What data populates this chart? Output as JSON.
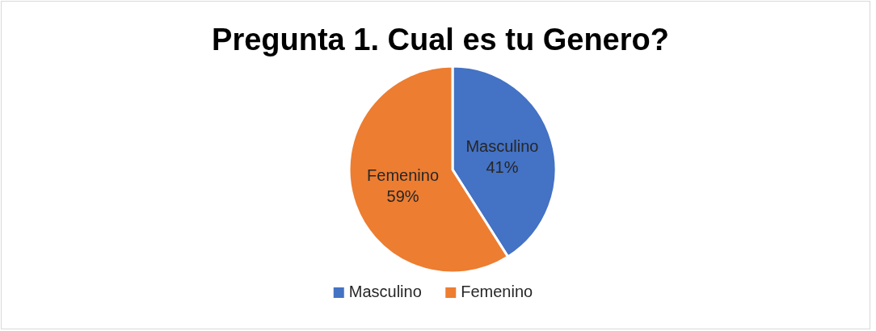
{
  "chart_data": {
    "type": "pie",
    "title": "Pregunta 1. Cual es tu Genero?",
    "categories": [
      "Masculino",
      "Femenino"
    ],
    "values": [
      41,
      59
    ],
    "colors": [
      "#4472c4",
      "#ed7d31"
    ],
    "value_labels": [
      "41%",
      "59%"
    ],
    "legend": "bottom"
  }
}
